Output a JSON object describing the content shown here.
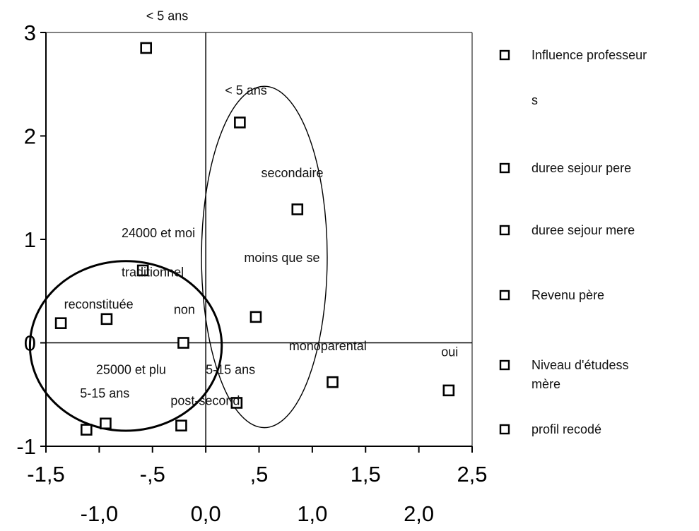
{
  "chart_data": {
    "type": "scatter",
    "xlim": [
      -1.5,
      2.5
    ],
    "ylim": [
      -1,
      3
    ],
    "xticks_top_row": [
      {
        "value": -1.5,
        "label": "-1,5"
      },
      {
        "value": -0.5,
        "label": "-,5"
      },
      {
        "value": 0.5,
        "label": ",5"
      },
      {
        "value": 1.5,
        "label": "1,5"
      },
      {
        "value": 2.5,
        "label": "2,5"
      }
    ],
    "xticks_bottom_row": [
      {
        "value": -1.0,
        "label": "-1,0"
      },
      {
        "value": 0.0,
        "label": "0,0"
      },
      {
        "value": 1.0,
        "label": "1,0"
      },
      {
        "value": 2.0,
        "label": "2,0"
      }
    ],
    "yticks": [
      {
        "value": 3,
        "label": "3"
      },
      {
        "value": 2,
        "label": "2"
      },
      {
        "value": 1,
        "label": "1"
      },
      {
        "value": 0,
        "label": "0"
      },
      {
        "value": -1,
        "label": "-1"
      }
    ],
    "points": [
      {
        "label": "< 5 ans",
        "x": -0.56,
        "y": 2.85
      },
      {
        "label": "< 5 ans",
        "x": 0.32,
        "y": 2.13
      },
      {
        "label": "secondaire",
        "x": 0.86,
        "y": 1.29
      },
      {
        "label": "traditionnel",
        "x": -0.59,
        "y": 0.7
      },
      {
        "label": "moins que se",
        "x": 0.47,
        "y": 0.25
      },
      {
        "label": "reconstituée",
        "x": -1.36,
        "y": 0.19
      },
      {
        "label": "24000 et moi",
        "x": -0.93,
        "y": 0.23
      },
      {
        "label": "non",
        "x": -0.21,
        "y": 0.0
      },
      {
        "label": "monoparental",
        "x": 1.19,
        "y": -0.38
      },
      {
        "label": "oui",
        "x": 2.28,
        "y": -0.46
      },
      {
        "label": "5-15 ans",
        "x": 0.29,
        "y": -0.58
      },
      {
        "label": "post-second",
        "x": -0.23,
        "y": -0.8
      },
      {
        "label": "25000 et plu",
        "x": -0.94,
        "y": -0.78
      },
      {
        "label": "5-15 ans",
        "x": -1.12,
        "y": -0.84
      }
    ],
    "label_text": [
      {
        "text": "< 5 ans",
        "x": -0.56,
        "y": 3.12
      },
      {
        "text": "< 5 ans",
        "x": 0.18,
        "y": 2.4
      },
      {
        "text": "secondaire",
        "x": 0.52,
        "y": 1.6
      },
      {
        "text": "24000 et moi",
        "x": -0.79,
        "y": 1.02
      },
      {
        "text": "traditionnel",
        "x": -0.79,
        "y": 0.64
      },
      {
        "text": "moins que se",
        "x": 0.36,
        "y": 0.78
      },
      {
        "text": "reconstituée",
        "x": -1.33,
        "y": 0.33
      },
      {
        "text": "non",
        "x": -0.3,
        "y": 0.28
      },
      {
        "text": "monoparental",
        "x": 0.78,
        "y": -0.07
      },
      {
        "text": "oui",
        "x": 2.21,
        "y": -0.13
      },
      {
        "text": "25000 et plu",
        "x": -1.03,
        "y": -0.3
      },
      {
        "text": "5-15 ans",
        "x": 0.0,
        "y": -0.3
      },
      {
        "text": "5-15 ans",
        "x": -1.18,
        "y": -0.53
      },
      {
        "text": "post-second",
        "x": -0.33,
        "y": -0.6
      }
    ],
    "ellipses": [
      {
        "cx": -0.75,
        "cy": -0.03,
        "rx": 0.9,
        "ry": 0.82,
        "stroke_color": "#000000",
        "thick": true
      },
      {
        "cx": 0.55,
        "cy": 0.83,
        "rx": 0.59,
        "ry": 1.65,
        "stroke_color": "#000000",
        "thick": false
      }
    ],
    "legend": {
      "placement": "right",
      "entries": [
        {
          "label": "Influence professeur"
        },
        {
          "label": "s"
        },
        {
          "label": "duree sejour pere"
        },
        {
          "label": "duree sejour mere"
        },
        {
          "label": "Revenu père"
        },
        {
          "label": "Niveau d'étudess"
        },
        {
          "label": "mère"
        },
        {
          "label": "profil recodé"
        }
      ]
    },
    "grid": false,
    "marker": "open-square",
    "colors": {
      "axis": "#000000",
      "marker": "#000000",
      "text": "#111111"
    }
  }
}
